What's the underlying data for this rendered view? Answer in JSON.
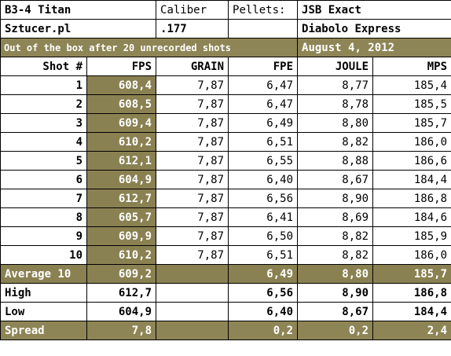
{
  "info": {
    "gun": "B3-4 Titan",
    "caliber_label": "Caliber",
    "pellets_label": "Pellets:",
    "pellet_brand": "JSB Exact",
    "source": "Sztucer.pl",
    "caliber": ".177",
    "pellet_model": "Diabolo Express",
    "note": "Out of the box after 20 unrecorded shots",
    "date": "August 4, 2012"
  },
  "headers": [
    "Shot #",
    "FPS",
    "GRAIN",
    "FPE",
    "JOULE",
    "MPS"
  ],
  "shots": [
    {
      "shot": "1",
      "fps": "608,4",
      "grain": "7,87",
      "fpe": "6,47",
      "joule": "8,77",
      "mps": "185,4"
    },
    {
      "shot": "2",
      "fps": "608,5",
      "grain": "7,87",
      "fpe": "6,47",
      "joule": "8,78",
      "mps": "185,5"
    },
    {
      "shot": "3",
      "fps": "609,4",
      "grain": "7,87",
      "fpe": "6,49",
      "joule": "8,80",
      "mps": "185,7"
    },
    {
      "shot": "4",
      "fps": "610,2",
      "grain": "7,87",
      "fpe": "6,51",
      "joule": "8,82",
      "mps": "186,0"
    },
    {
      "shot": "5",
      "fps": "612,1",
      "grain": "7,87",
      "fpe": "6,55",
      "joule": "8,88",
      "mps": "186,6"
    },
    {
      "shot": "6",
      "fps": "604,9",
      "grain": "7,87",
      "fpe": "6,40",
      "joule": "8,67",
      "mps": "184,4"
    },
    {
      "shot": "7",
      "fps": "612,7",
      "grain": "7,87",
      "fpe": "6,56",
      "joule": "8,90",
      "mps": "186,8"
    },
    {
      "shot": "8",
      "fps": "605,7",
      "grain": "7,87",
      "fpe": "6,41",
      "joule": "8,69",
      "mps": "184,6"
    },
    {
      "shot": "9",
      "fps": "609,9",
      "grain": "7,87",
      "fpe": "6,50",
      "joule": "8,82",
      "mps": "185,9"
    },
    {
      "shot": "10",
      "fps": "610,2",
      "grain": "7,87",
      "fpe": "6,51",
      "joule": "8,82",
      "mps": "186,0"
    }
  ],
  "summary": {
    "average": {
      "label": "Average 10",
      "fps": "609,2",
      "fpe": "6,49",
      "joule": "8,80",
      "mps": "185,7"
    },
    "high": {
      "label": "High",
      "fps": "612,7",
      "fpe": "6,56",
      "joule": "8,90",
      "mps": "186,8"
    },
    "low": {
      "label": "Low",
      "fps": "604,9",
      "fpe": "6,40",
      "joule": "8,67",
      "mps": "184,4"
    },
    "spread": {
      "label": "Spread",
      "fps": "7,8",
      "fpe": "0,2",
      "joule": "0,2",
      "mps": "2,4"
    }
  }
}
